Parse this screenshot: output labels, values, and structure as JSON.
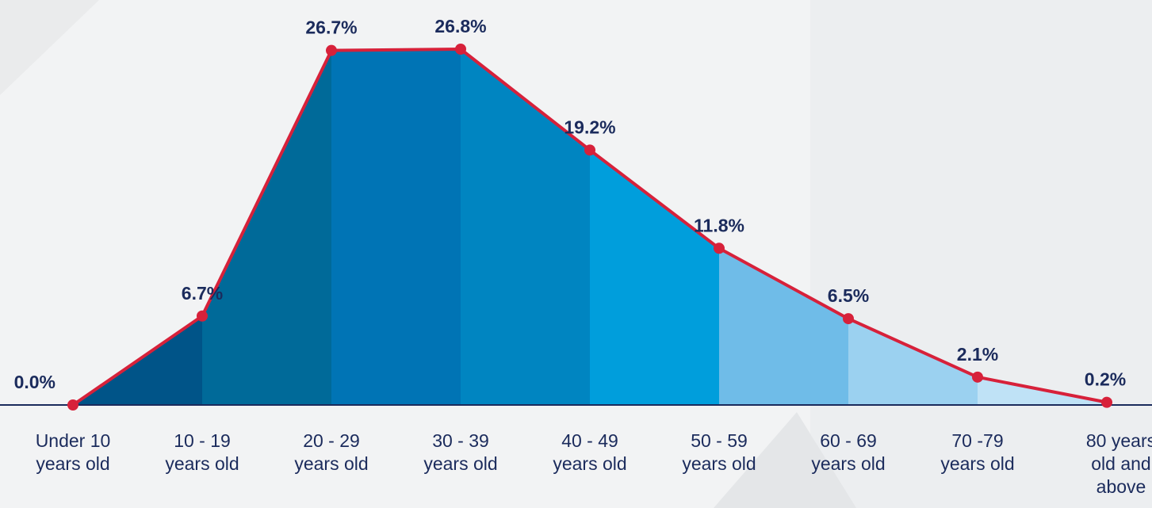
{
  "chart_data": {
    "type": "area",
    "categories": [
      [
        "Under 10",
        "years old"
      ],
      [
        "10 - 19",
        "years old"
      ],
      [
        "20 - 29",
        "years old"
      ],
      [
        "30 - 39",
        "years old"
      ],
      [
        "40 - 49",
        "years old"
      ],
      [
        "50 - 59",
        "years old"
      ],
      [
        "60 - 69",
        "years old"
      ],
      [
        "70 -79",
        "years old"
      ],
      [
        "80 years",
        "old and",
        "above"
      ]
    ],
    "values": [
      0.0,
      6.7,
      26.7,
      26.8,
      19.2,
      11.8,
      6.5,
      2.1,
      0.2
    ],
    "value_labels": [
      "0.0%",
      "6.7%",
      "26.7%",
      "26.8%",
      "19.2%",
      "11.8%",
      "6.5%",
      "2.1%",
      "0.2%"
    ],
    "ylim": [
      0,
      26.8
    ],
    "grid": false,
    "legend": "none",
    "colors": {
      "line": "#d7213a",
      "marker": "#d7213a",
      "axis": "#1b2b5c",
      "label": "#1b2b5c",
      "background": "#f2f3f4",
      "bands": [
        "#005488",
        "#006a99",
        "#0074b5",
        "#0085c1",
        "#009edc",
        "#6fbce8",
        "#9bd1f0",
        "#bfe2f6"
      ]
    }
  }
}
